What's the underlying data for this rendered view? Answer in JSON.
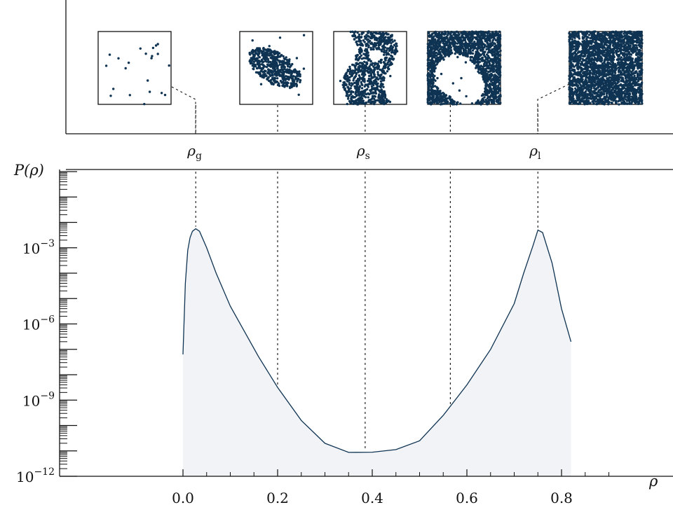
{
  "colors": {
    "curve": "#0f3352",
    "fill": "#f1f3f6",
    "dots": "#0f3352"
  },
  "chart_data": {
    "type": "area",
    "y_scale": "log",
    "ylabel": "P(ρ)",
    "xlabel": "ρ",
    "xlim": [
      -0.25,
      1.03
    ],
    "ylim": [
      1e-12,
      1
    ],
    "x_ticks": [
      {
        "value": 0.0,
        "label": "0.0"
      },
      {
        "value": 0.2,
        "label": "0.2"
      },
      {
        "value": 0.4,
        "label": "0.4"
      },
      {
        "value": 0.6,
        "label": "0.6"
      },
      {
        "value": 0.8,
        "label": "0.8"
      }
    ],
    "y_ticks": [
      {
        "exp": -3,
        "label_base": "10",
        "label_exp": "−3"
      },
      {
        "exp": -6,
        "label_base": "10",
        "label_exp": "−6"
      },
      {
        "exp": -9,
        "label_base": "10",
        "label_exp": "−9"
      },
      {
        "exp": -12,
        "label_base": "10",
        "label_exp": "−12"
      }
    ],
    "series": [
      {
        "x": [
          0.0,
          0.005,
          0.01,
          0.015,
          0.02,
          0.027,
          0.035,
          0.05,
          0.07,
          0.1,
          0.13,
          0.16,
          0.2,
          0.25,
          0.3,
          0.35,
          0.4,
          0.45,
          0.5,
          0.55,
          0.6,
          0.65,
          0.7,
          0.72,
          0.74,
          0.75,
          0.76,
          0.78,
          0.8,
          0.82
        ],
        "log10_y": [
          -7.2,
          -4.4,
          -3.1,
          -2.6,
          -2.35,
          -2.25,
          -2.35,
          -3.0,
          -4.0,
          -5.3,
          -6.3,
          -7.3,
          -8.5,
          -9.8,
          -10.7,
          -11.06,
          -11.05,
          -10.95,
          -10.6,
          -9.6,
          -8.4,
          -7.0,
          -5.2,
          -4.0,
          -2.9,
          -2.3,
          -2.4,
          -3.6,
          -5.4,
          -6.7
        ]
      }
    ],
    "markers": [
      {
        "x": 0.027,
        "label_base": "ρ",
        "label_sub": "g"
      },
      {
        "x": 0.2,
        "label_base": "",
        "label_sub": ""
      },
      {
        "x": 0.385,
        "label_base": "ρ",
        "label_sub": "s"
      },
      {
        "x": 0.565,
        "label_base": "",
        "label_sub": ""
      },
      {
        "x": 0.75,
        "label_base": "ρ",
        "label_sub": "l"
      }
    ]
  }
}
